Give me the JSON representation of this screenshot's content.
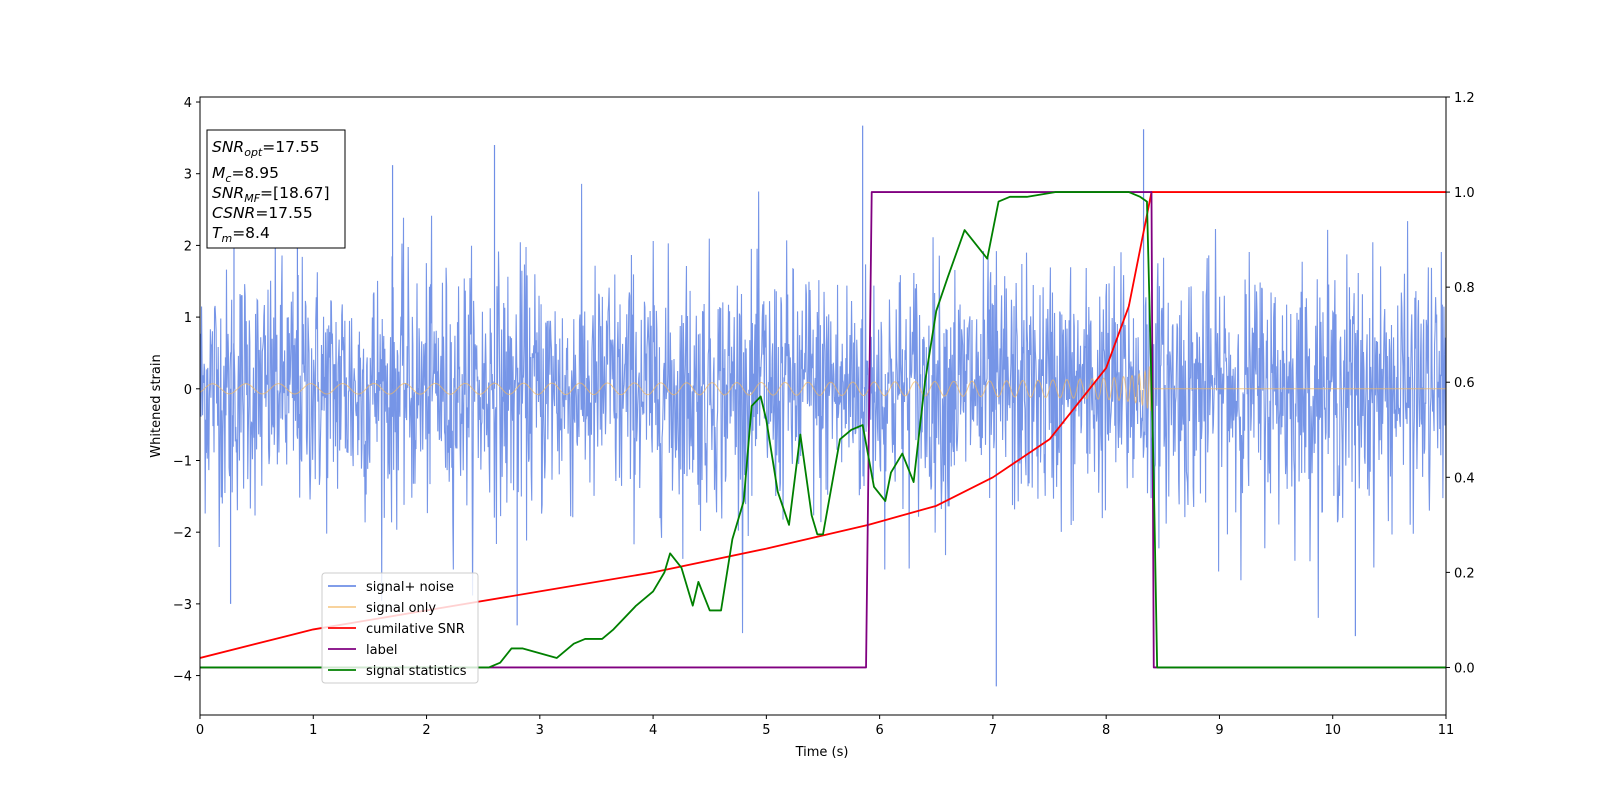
{
  "chart_data": {
    "type": "line",
    "title": "",
    "xlabel": "Time (s)",
    "ylabel": "Whitened strain",
    "xlim": [
      0,
      11
    ],
    "ylim": [
      -4.55,
      4.07
    ],
    "y2lim": [
      -0.1,
      1.2
    ],
    "xticks": [
      0,
      1,
      2,
      3,
      4,
      5,
      6,
      7,
      8,
      9,
      10,
      11
    ],
    "yticks": [
      -4,
      -3,
      -2,
      -1,
      0,
      1,
      2,
      3,
      4
    ],
    "y2ticks": [
      0.0,
      0.2,
      0.4,
      0.6,
      0.8,
      1.0,
      1.2
    ],
    "xtick_labels": [
      "0",
      "1",
      "2",
      "3",
      "4",
      "5",
      "6",
      "7",
      "8",
      "9",
      "10",
      "11"
    ],
    "ytick_labels": [
      "−4",
      "−3",
      "−2",
      "−1",
      "0",
      "1",
      "2",
      "3",
      "4"
    ],
    "y2tick_labels": [
      "0.0",
      "0.2",
      "0.4",
      "0.6",
      "0.8",
      "1.0",
      "1.2"
    ],
    "legend_placement": "lower-left",
    "grid": false,
    "series": [
      {
        "name": "signal+ noise",
        "axis": "left",
        "color": "#6f8fe6",
        "approx": "noise band roughly ±1.5 std, peaks near ±3.6, signal ends at t=8.4",
        "peaks": [
          {
            "x": 0.3,
            "y": 2.6
          },
          {
            "x": 0.86,
            "y": 3.15
          },
          {
            "x": 1.7,
            "y": 3.12
          },
          {
            "x": 2.6,
            "y": 3.4
          },
          {
            "x": 5.85,
            "y": 3.67
          },
          {
            "x": 8.33,
            "y": 3.62
          },
          {
            "x": 7.03,
            "y": -4.15
          },
          {
            "x": 10.2,
            "y": -3.45
          },
          {
            "x": 2.8,
            "y": -3.3
          },
          {
            "x": 0.27,
            "y": -3.0
          }
        ]
      },
      {
        "name": "signal only",
        "axis": "left",
        "color": "#f4b860",
        "approx": "chirp, amplitude grows from ~0.07 at t=0 to ~1.3 at t=8.4, then 0"
      },
      {
        "name": "cumilative SNR",
        "axis": "right",
        "color": "#ff0000",
        "x": [
          0,
          1,
          2,
          3,
          4,
          5,
          5.9,
          6.5,
          7,
          7.5,
          8,
          8.2,
          8.4,
          11
        ],
        "y": [
          0.02,
          0.08,
          0.12,
          0.16,
          0.2,
          0.25,
          0.3,
          0.34,
          0.4,
          0.48,
          0.63,
          0.76,
          1.0,
          1.0
        ]
      },
      {
        "name": "label",
        "axis": "right",
        "color": "#800080",
        "x": [
          0,
          5.88,
          5.93,
          8.38,
          8.4,
          8.42,
          11
        ],
        "y": [
          0,
          0,
          1.0,
          1.0,
          1.0,
          0,
          0
        ]
      },
      {
        "name": "signal statistics",
        "axis": "right",
        "color": "#008000",
        "x": [
          0,
          0.3,
          2.55,
          2.65,
          2.75,
          2.85,
          3.0,
          3.15,
          3.3,
          3.4,
          3.55,
          3.65,
          3.85,
          4.0,
          4.1,
          4.15,
          4.25,
          4.35,
          4.4,
          4.5,
          4.6,
          4.7,
          4.8,
          4.87,
          4.95,
          5.0,
          5.1,
          5.2,
          5.3,
          5.4,
          5.45,
          5.5,
          5.65,
          5.75,
          5.85,
          5.95,
          6.05,
          6.1,
          6.2,
          6.3,
          6.4,
          6.5,
          6.6,
          6.75,
          6.95,
          7.05,
          7.15,
          7.3,
          7.55,
          7.8,
          8.0,
          8.2,
          8.3,
          8.36,
          8.42,
          8.45,
          9,
          11
        ],
        "y": [
          0.0,
          0.0,
          0.0,
          0.01,
          0.04,
          0.04,
          0.03,
          0.02,
          0.05,
          0.06,
          0.06,
          0.08,
          0.13,
          0.16,
          0.2,
          0.24,
          0.21,
          0.13,
          0.18,
          0.12,
          0.12,
          0.27,
          0.35,
          0.55,
          0.57,
          0.52,
          0.37,
          0.3,
          0.49,
          0.32,
          0.28,
          0.28,
          0.48,
          0.5,
          0.51,
          0.38,
          0.35,
          0.41,
          0.45,
          0.39,
          0.6,
          0.75,
          0.82,
          0.92,
          0.86,
          0.98,
          0.99,
          0.99,
          1.0,
          1.0,
          1.0,
          1.0,
          0.99,
          0.98,
          0.4,
          0.0,
          0.0,
          0.0
        ]
      }
    ]
  },
  "infobox": {
    "lines": [
      {
        "base": "SNR",
        "sub": "opt",
        "value": "=17.55"
      },
      {
        "base": "M",
        "sub": "c",
        "value": "=8.95"
      },
      {
        "base": "SNR",
        "sub": "MF",
        "value": "=[18.67]"
      },
      {
        "base": "CSNR",
        "sub": "",
        "value": "=17.55"
      },
      {
        "base": "T",
        "sub": "m",
        "value": "=8.4"
      }
    ]
  }
}
